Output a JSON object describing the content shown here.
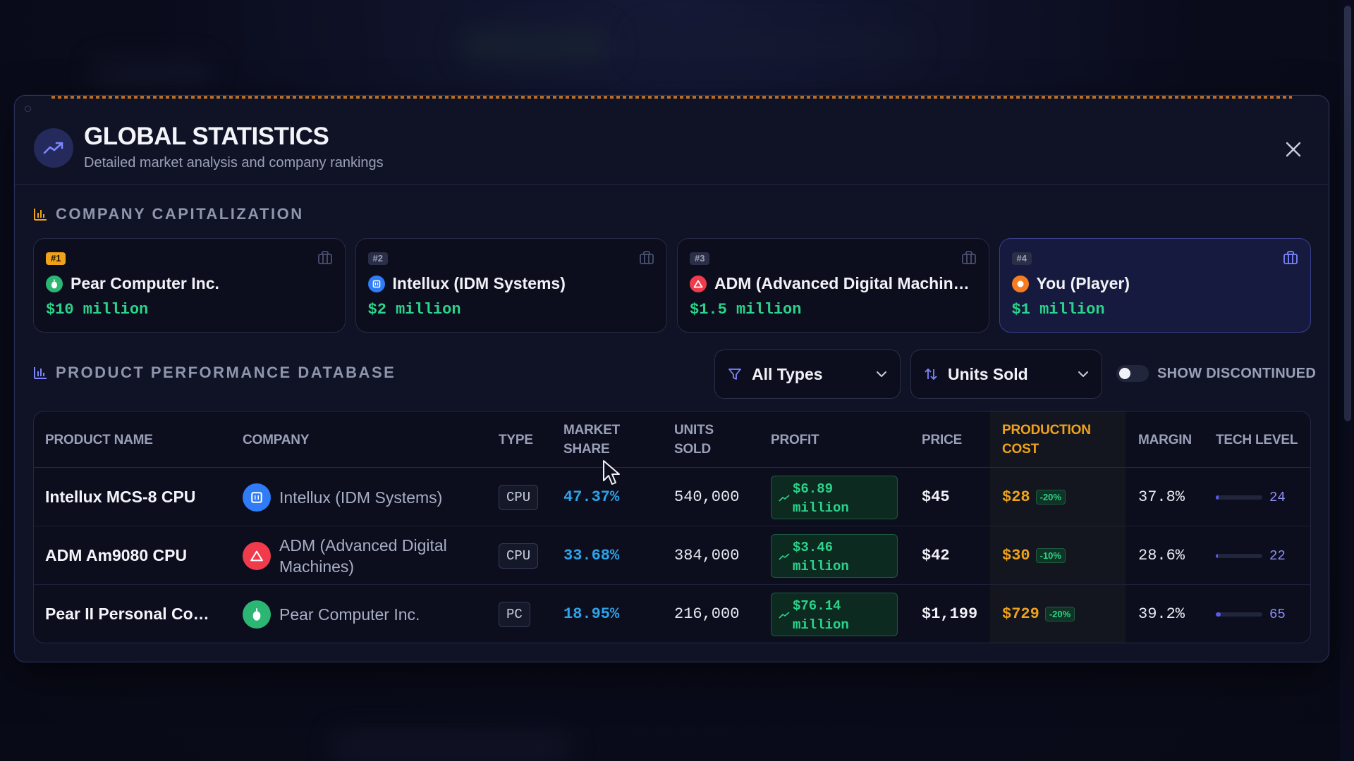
{
  "modal": {
    "title": "GLOBAL STATISTICS",
    "subtitle": "Detailed market analysis and company rankings"
  },
  "capitalization": {
    "section_title": "COMPANY CAPITALIZATION",
    "cards": [
      {
        "rank": "#1",
        "company": "Pear Computer Inc.",
        "value": "$10 million",
        "logo_color": "#2bb673"
      },
      {
        "rank": "#2",
        "company": "Intellux (IDM Systems)",
        "value": "$2 million",
        "logo_color": "#2f7cf6"
      },
      {
        "rank": "#3",
        "company": "ADM (Advanced Digital Machin…",
        "value": "$1.5 million",
        "logo_color": "#ef3b4b"
      },
      {
        "rank": "#4",
        "company": "You (Player)",
        "value": "$1 million",
        "logo_color": "#f57c20"
      }
    ]
  },
  "products": {
    "section_title": "PRODUCT PERFORMANCE DATABASE",
    "type_filter": "All Types",
    "sort_by": "Units Sold",
    "show_discontinued_label": "SHOW DISCONTINUED",
    "show_discontinued": false,
    "columns": {
      "product_name": "PRODUCT NAME",
      "company": "COMPANY",
      "type": "TYPE",
      "market_share": "MARKET SHARE",
      "units_sold": "UNITS SOLD",
      "profit": "PROFIT",
      "price": "PRICE",
      "production_cost": "PRODUCTION COST",
      "margin": "MARGIN",
      "tech_level": "TECH LEVEL"
    },
    "rows": [
      {
        "product": "Intellux MCS-8 CPU",
        "company": "Intellux (IDM Systems)",
        "type": "CPU",
        "market_share": "47.37%",
        "units_sold": "540,000",
        "profit_amount": "$6.89",
        "profit_unit": "million",
        "price": "$45",
        "cost": "$28",
        "cost_delta": "-20%",
        "margin": "37.8%",
        "tech_level": "24",
        "tech_fill": 0.06
      },
      {
        "product": "ADM Am9080 CPU",
        "company": "ADM (Advanced Digital Machines)",
        "type": "CPU",
        "market_share": "33.68%",
        "units_sold": "384,000",
        "profit_amount": "$3.46",
        "profit_unit": "million",
        "price": "$42",
        "cost": "$30",
        "cost_delta": "-10%",
        "margin": "28.6%",
        "tech_level": "22",
        "tech_fill": 0.05
      },
      {
        "product": "Pear II Personal Co…",
        "company": "Pear Computer Inc.",
        "type": "PC",
        "market_share": "18.95%",
        "units_sold": "216,000",
        "profit_amount": "$76.14",
        "profit_unit": "million",
        "price": "$1,199",
        "cost": "$729",
        "cost_delta": "-20%",
        "margin": "39.2%",
        "tech_level": "65",
        "tech_fill": 0.1
      }
    ]
  }
}
